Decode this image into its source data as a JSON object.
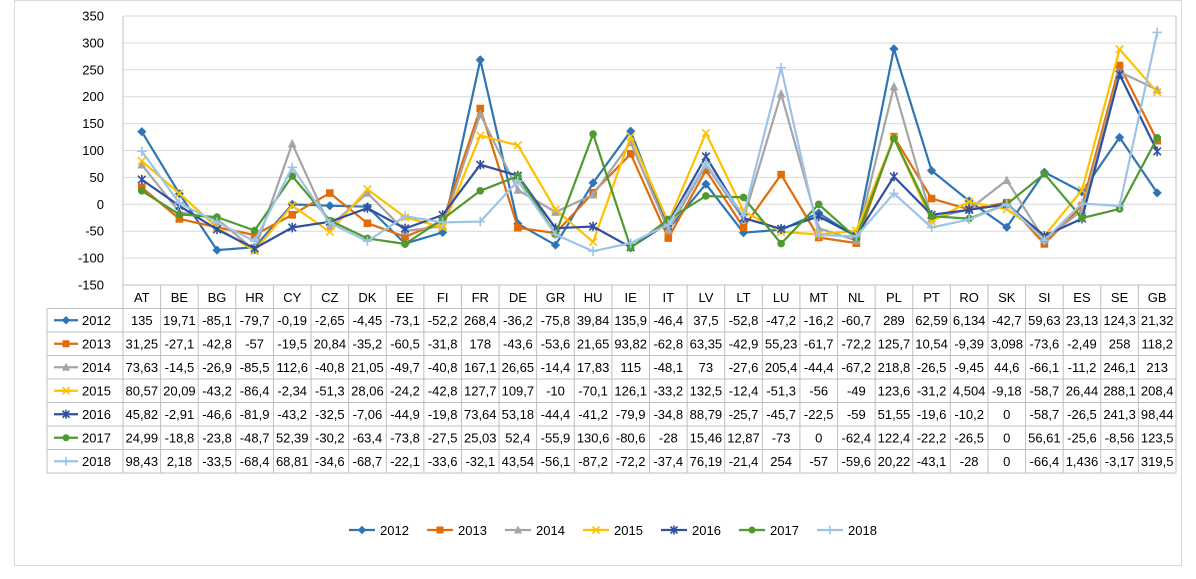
{
  "chart_data": {
    "type": "line",
    "title": "",
    "xlabel": "",
    "ylabel": "",
    "ylim": [
      -150,
      350
    ],
    "yticks": [
      -150,
      -100,
      -50,
      0,
      50,
      100,
      150,
      200,
      250,
      300,
      350
    ],
    "ytick_labels": [
      "-150",
      "-100",
      "-50",
      "0",
      "50",
      "100",
      "150",
      "200",
      "250",
      "300",
      "350"
    ],
    "grid": true,
    "legend_position": "bottom",
    "categories": [
      "AT",
      "BE",
      "BG",
      "HR",
      "CY",
      "CZ",
      "DK",
      "EE",
      "FI",
      "FR",
      "DE",
      "GR",
      "HU",
      "IE",
      "IT",
      "LV",
      "LT",
      "LU",
      "MT",
      "NL",
      "PL",
      "PT",
      "RO",
      "SK",
      "SI",
      "ES",
      "SE",
      "GB"
    ],
    "series": [
      {
        "name": "2012",
        "color": "#2E75B6",
        "marker": "diamond",
        "values": [
          135,
          19.71,
          -85.1,
          -79.7,
          -0.19,
          -2.65,
          -4.45,
          -73.1,
          -52.2,
          268.4,
          -36.2,
          -75.8,
          39.84,
          135.9,
          -46.4,
          37.5,
          -52.8,
          -47.2,
          -16.2,
          -60.7,
          289,
          62.59,
          6.134,
          -42.7,
          59.63,
          23.13,
          124.3,
          21.32
        ],
        "labels": [
          "135",
          "19,71",
          "-85,1",
          "-79,7",
          "-0,19",
          "-2,65",
          "-4,45",
          "-73,1",
          "-52,2",
          "268,4",
          "-36,2",
          "-75,8",
          "39,84",
          "135,9",
          "-46,4",
          "37,5",
          "-52,8",
          "-47,2",
          "-16,2",
          "-60,7",
          "289",
          "62,59",
          "6,134",
          "-42,7",
          "59,63",
          "23,13",
          "124,3",
          "21,32"
        ]
      },
      {
        "name": "2013",
        "color": "#E36C0A",
        "marker": "square",
        "values": [
          31.25,
          -27.1,
          -42.8,
          -57,
          -19.5,
          20.84,
          -35.2,
          -60.5,
          -31.8,
          178,
          -43.6,
          -53.6,
          21.65,
          93.82,
          -62.8,
          63.35,
          -42.9,
          55.23,
          -61.7,
          -72.2,
          125.7,
          10.54,
          -9.39,
          3.098,
          -73.6,
          -2.49,
          258,
          118.2
        ],
        "labels": [
          "31,25",
          "-27,1",
          "-42,8",
          "-57",
          "-19,5",
          "20,84",
          "-35,2",
          "-60,5",
          "-31,8",
          "178",
          "-43,6",
          "-53,6",
          "21,65",
          "93,82",
          "-62,8",
          "63,35",
          "-42,9",
          "55,23",
          "-61,7",
          "-72,2",
          "125,7",
          "10,54",
          "-9,39",
          "3,098",
          "-73,6",
          "-2,49",
          "258",
          "118,2"
        ]
      },
      {
        "name": "2014",
        "color": "#A5A5A5",
        "marker": "triangle",
        "values": [
          73.63,
          -14.5,
          -26.9,
          -85.5,
          112.6,
          -40.8,
          21.05,
          -49.7,
          -40.8,
          167.1,
          26.65,
          -14.4,
          17.83,
          115,
          -48.1,
          73,
          -27.6,
          205.4,
          -44.4,
          -67.2,
          218.8,
          -26.5,
          -9.45,
          44.6,
          -66.1,
          -11.2,
          246.1,
          213
        ],
        "labels": [
          "73,63",
          "-14,5",
          "-26,9",
          "-85,5",
          "112,6",
          "-40,8",
          "21,05",
          "-49,7",
          "-40,8",
          "167,1",
          "26,65",
          "-14,4",
          "17,83",
          "115",
          "-48,1",
          "73",
          "-27,6",
          "205,4",
          "-44,4",
          "-67,2",
          "218,8",
          "-26,5",
          "-9,45",
          "44,6",
          "-66,1",
          "-11,2",
          "246,1",
          "213"
        ]
      },
      {
        "name": "2015",
        "color": "#FFC000",
        "marker": "x",
        "values": [
          80.57,
          20.09,
          -43.2,
          -86.4,
          -2.34,
          -51.3,
          28.06,
          -24.2,
          -42.8,
          127.7,
          109.7,
          -10,
          -70.1,
          126.1,
          -33.2,
          132.5,
          -12.4,
          -51.3,
          -56,
          -49,
          123.6,
          -31.2,
          4.504,
          -9.18,
          -58.7,
          26.44,
          288.1,
          208.4
        ],
        "labels": [
          "80,57",
          "20,09",
          "-43,2",
          "-86,4",
          "-2,34",
          "-51,3",
          "28,06",
          "-24,2",
          "-42,8",
          "127,7",
          "109,7",
          "-10",
          "-70,1",
          "126,1",
          "-33,2",
          "132,5",
          "-12,4",
          "-51,3",
          "-56",
          "-49",
          "123,6",
          "-31,2",
          "4,504",
          "-9,18",
          "-58,7",
          "26,44",
          "288,1",
          "208,4"
        ]
      },
      {
        "name": "2016",
        "color": "#2F4F9F",
        "marker": "star",
        "values": [
          45.82,
          -2.91,
          -46.6,
          -81.9,
          -43.2,
          -32.5,
          -7.06,
          -44.9,
          -19.8,
          73.64,
          53.18,
          -44.4,
          -41.2,
          -79.9,
          -34.8,
          88.79,
          -25.7,
          -45.7,
          -22.5,
          -59,
          51.55,
          -19.6,
          -10.2,
          0,
          -58.7,
          -26.5,
          241.3,
          98.44
        ],
        "labels": [
          "45,82",
          "-2,91",
          "-46,6",
          "-81,9",
          "-43,2",
          "-32,5",
          "-7,06",
          "-44,9",
          "-19,8",
          "73,64",
          "53,18",
          "-44,4",
          "-41,2",
          "-79,9",
          "-34,8",
          "88,79",
          "-25,7",
          "-45,7",
          "-22,5",
          "-59",
          "51,55",
          "-19,6",
          "-10,2",
          "0",
          "-58,7",
          "-26,5",
          "241,3",
          "98,44"
        ]
      },
      {
        "name": "2017",
        "color": "#4E9A2E",
        "marker": "circle",
        "values": [
          24.99,
          -18.8,
          -23.8,
          -48.7,
          52.39,
          -30.2,
          -63.4,
          -73.8,
          -27.5,
          25.03,
          52.4,
          -55.9,
          130.6,
          -80.6,
          -28,
          15.46,
          12.87,
          -73,
          0,
          -62.4,
          122.4,
          -22.2,
          -26.5,
          0,
          56.61,
          -25.6,
          -8.56,
          123.5
        ],
        "labels": [
          "24,99",
          "-18,8",
          "-23,8",
          "-48,7",
          "52,39",
          "-30,2",
          "-63,4",
          "-73,8",
          "-27,5",
          "25,03",
          "52,4",
          "-55,9",
          "130,6",
          "-80,6",
          "-28",
          "15,46",
          "12,87",
          "-73",
          "0",
          "-62,4",
          "122,4",
          "-22,2",
          "-26,5",
          "0",
          "56,61",
          "-25,6",
          "-8,56",
          "123,5"
        ]
      },
      {
        "name": "2018",
        "color": "#9DC3E6",
        "marker": "plus",
        "values": [
          98.43,
          2.18,
          -33.5,
          -68.4,
          68.81,
          -34.6,
          -68.7,
          -22.1,
          -33.6,
          -32.1,
          43.54,
          -56.1,
          -87.2,
          -72.2,
          -37.4,
          76.19,
          -21.4,
          254,
          -57,
          -59.6,
          20.22,
          -43.1,
          -28,
          0,
          -66.4,
          1.436,
          -3.17,
          319.5
        ],
        "labels": [
          "98,43",
          "2,18",
          "-33,5",
          "-68,4",
          "68,81",
          "-34,6",
          "-68,7",
          "-22,1",
          "-33,6",
          "-32,1",
          "43,54",
          "-56,1",
          "-87,2",
          "-72,2",
          "-37,4",
          "76,19",
          "-21,4",
          "254",
          "-57",
          "-59,6",
          "20,22",
          "-43,1",
          "-28",
          "0",
          "-66,4",
          "1,436",
          "-3,17",
          "319,5"
        ]
      }
    ]
  }
}
